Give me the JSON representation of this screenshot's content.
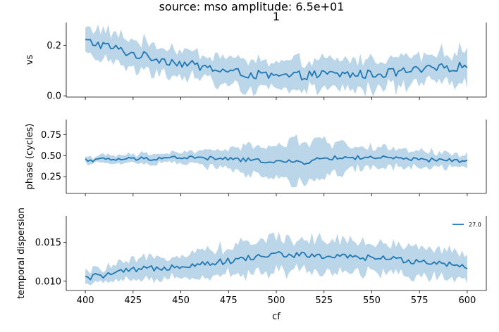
{
  "figure": {
    "suptitle": "source: mso amplitude: 6.5e+01",
    "panel_title": "1",
    "xlabel": "cf"
  },
  "chart_data": [
    {
      "type": "line",
      "ylabel": "vs",
      "xlim": [
        390,
        610
      ],
      "ylim": [
        -0.005,
        0.29
      ],
      "yticks": [
        0.0,
        0.2
      ],
      "ytick_labels": [
        "0.0",
        "0.2"
      ],
      "xticks": [
        400,
        425,
        450,
        475,
        500,
        525,
        550,
        575,
        600
      ],
      "x_range": [
        400,
        600
      ],
      "n_points": 151,
      "series": [
        {
          "color": "#1f77b4",
          "band_color": "#1f77b4",
          "anchors_x": [
            400,
            410,
            425,
            450,
            475,
            500,
            525,
            550,
            575,
            600
          ],
          "mean": [
            0.215,
            0.2,
            0.165,
            0.13,
            0.095,
            0.075,
            0.085,
            0.085,
            0.1,
            0.12
          ],
          "band_half": [
            0.06,
            0.058,
            0.055,
            0.05,
            0.055,
            0.055,
            0.055,
            0.06,
            0.06,
            0.06
          ],
          "noise": 0.018
        }
      ]
    },
    {
      "type": "line",
      "ylabel": "phase (cycles)",
      "xlim": [
        390,
        610
      ],
      "ylim": [
        0.05,
        0.93
      ],
      "yticks": [
        0.25,
        0.5,
        0.75
      ],
      "ytick_labels": [
        "0.25",
        "0.50",
        "0.75"
      ],
      "xticks": [
        400,
        425,
        450,
        475,
        500,
        525,
        550,
        575,
        600
      ],
      "x_range": [
        400,
        600
      ],
      "n_points": 151,
      "series": [
        {
          "color": "#1f77b4",
          "band_color": "#1f77b4",
          "anchors_x": [
            400,
            425,
            450,
            475,
            500,
            515,
            525,
            550,
            575,
            600
          ],
          "mean": [
            0.45,
            0.46,
            0.48,
            0.46,
            0.43,
            0.42,
            0.47,
            0.48,
            0.45,
            0.44
          ],
          "band_half": [
            0.04,
            0.05,
            0.06,
            0.12,
            0.2,
            0.25,
            0.2,
            0.12,
            0.1,
            0.08
          ],
          "noise": 0.025
        }
      ]
    },
    {
      "type": "line",
      "ylabel": "temporal dispersion",
      "xlim": [
        390,
        610
      ],
      "ylim": [
        0.0088,
        0.0184
      ],
      "yticks": [
        0.01,
        0.015
      ],
      "ytick_labels": [
        "0.010",
        "0.015"
      ],
      "xticks": [
        400,
        425,
        450,
        475,
        500,
        525,
        550,
        575,
        600
      ],
      "xtick_labels": [
        "400",
        "425",
        "450",
        "475",
        "500",
        "525",
        "550",
        "575",
        "600"
      ],
      "x_range": [
        400,
        600
      ],
      "n_points": 151,
      "legend": {
        "placement": "top-right",
        "entries": [
          {
            "label": "27.0",
            "color": "#1f77b4"
          }
        ]
      },
      "series": [
        {
          "name": "27.0",
          "color": "#1f77b4",
          "band_color": "#1f77b4",
          "anchors_x": [
            400,
            425,
            450,
            475,
            500,
            525,
            550,
            575,
            600
          ],
          "mean": [
            0.0104,
            0.0114,
            0.012,
            0.0126,
            0.0135,
            0.0132,
            0.013,
            0.0126,
            0.012
          ],
          "band_half": [
            0.0008,
            0.0012,
            0.0015,
            0.0018,
            0.0022,
            0.0022,
            0.002,
            0.0018,
            0.0016
          ],
          "noise": 0.0004
        }
      ]
    }
  ]
}
